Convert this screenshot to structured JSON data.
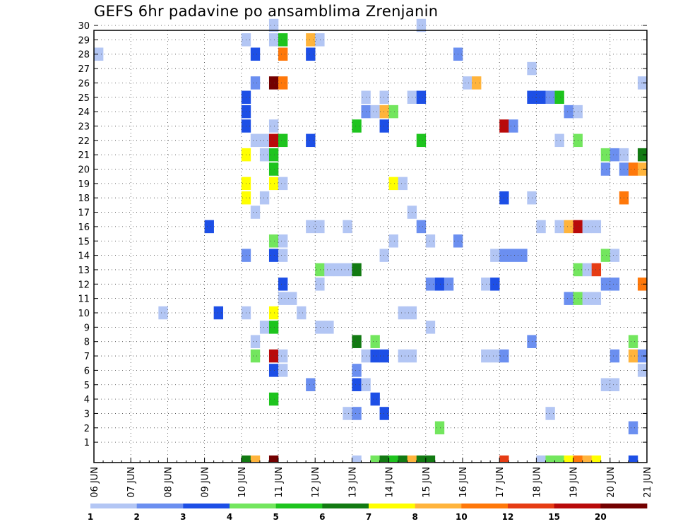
{
  "chart_data": {
    "type": "heatmap",
    "title": "GEFS 6hr padavine po ansamblima Zrenjanin",
    "x_tick_labels": [
      "06 JUN",
      "07 JUN",
      "08 JUN",
      "09 JUN",
      "10 JUN",
      "11 JUN",
      "12 JUN",
      "13 JUN",
      "14 JUN",
      "15 JUN",
      "16 JUN",
      "17 JUN",
      "18 JUN",
      "19 JUN",
      "20 JUN",
      "21 JUN"
    ],
    "y_tick_labels": [
      "1",
      "2",
      "3",
      "4",
      "5",
      "6",
      "7",
      "8",
      "9",
      "10",
      "11",
      "12",
      "13",
      "14",
      "15",
      "16",
      "17",
      "18",
      "19",
      "20",
      "21",
      "22",
      "23",
      "24",
      "25",
      "26",
      "27",
      "28",
      "29",
      "30"
    ],
    "x_unit": "day since 06 JUN 00Z (cell = 6 hr)",
    "xlim": [
      0,
      15
    ],
    "ylim": [
      0,
      30
    ],
    "grid": true,
    "colorbar_labels": [
      "1",
      "2",
      "3",
      "4",
      "5",
      "6",
      "7",
      "8",
      "10",
      "12",
      "15",
      "20"
    ],
    "colorbar_colors": [
      "#b3c6f4",
      "#6b8ff0",
      "#1d4fe6",
      "#73e65e",
      "#1ec41e",
      "#127a12",
      "#ffff00",
      "#ffb43c",
      "#ff780a",
      "#e63c14",
      "#b90a0a",
      "#730000"
    ],
    "cells": [
      {
        "m": 30,
        "x": 4.75,
        "c": 1
      },
      {
        "m": 30,
        "x": 8.75,
        "c": 1
      },
      {
        "m": 29,
        "x": 4.0,
        "c": 1
      },
      {
        "m": 29,
        "x": 4.75,
        "c": 1
      },
      {
        "m": 29,
        "x": 5.0,
        "c": 5
      },
      {
        "m": 29,
        "x": 5.75,
        "c": 8
      },
      {
        "m": 29,
        "x": 6.0,
        "c": 1
      },
      {
        "m": 28,
        "x": 0.0,
        "c": 1
      },
      {
        "m": 28,
        "x": 4.25,
        "c": 3
      },
      {
        "m": 28,
        "x": 5.0,
        "c": 9
      },
      {
        "m": 28,
        "x": 5.75,
        "c": 3
      },
      {
        "m": 28,
        "x": 9.75,
        "c": 2
      },
      {
        "m": 27,
        "x": 11.75,
        "c": 1
      },
      {
        "m": 26,
        "x": 4.25,
        "c": 2
      },
      {
        "m": 26,
        "x": 4.75,
        "c": 12
      },
      {
        "m": 26,
        "x": 5.0,
        "c": 9
      },
      {
        "m": 26,
        "x": 10.0,
        "c": 1
      },
      {
        "m": 26,
        "x": 10.25,
        "c": 8
      },
      {
        "m": 26,
        "x": 14.75,
        "c": 1
      },
      {
        "m": 25,
        "x": 4.0,
        "c": 3
      },
      {
        "m": 25,
        "x": 7.25,
        "c": 1
      },
      {
        "m": 25,
        "x": 7.75,
        "c": 1
      },
      {
        "m": 25,
        "x": 8.5,
        "c": 1
      },
      {
        "m": 25,
        "x": 8.75,
        "c": 3
      },
      {
        "m": 25,
        "x": 11.75,
        "c": 3
      },
      {
        "m": 25,
        "x": 12.0,
        "c": 3
      },
      {
        "m": 25,
        "x": 12.25,
        "c": 2
      },
      {
        "m": 25,
        "x": 12.5,
        "c": 5
      },
      {
        "m": 24,
        "x": 4.0,
        "c": 3
      },
      {
        "m": 24,
        "x": 7.25,
        "c": 2
      },
      {
        "m": 24,
        "x": 7.5,
        "c": 1
      },
      {
        "m": 24,
        "x": 7.75,
        "c": 8
      },
      {
        "m": 24,
        "x": 8.0,
        "c": 4
      },
      {
        "m": 24,
        "x": 12.75,
        "c": 2
      },
      {
        "m": 24,
        "x": 13.0,
        "c": 1
      },
      {
        "m": 23,
        "x": 4.0,
        "c": 3
      },
      {
        "m": 23,
        "x": 4.75,
        "c": 1
      },
      {
        "m": 23,
        "x": 7.0,
        "c": 5
      },
      {
        "m": 23,
        "x": 7.75,
        "c": 3
      },
      {
        "m": 23,
        "x": 11.0,
        "c": 11
      },
      {
        "m": 23,
        "x": 11.25,
        "c": 2
      },
      {
        "m": 22,
        "x": 4.25,
        "c": 1
      },
      {
        "m": 22,
        "x": 4.5,
        "c": 1
      },
      {
        "m": 22,
        "x": 4.75,
        "c": 11
      },
      {
        "m": 22,
        "x": 5.0,
        "c": 5
      },
      {
        "m": 22,
        "x": 5.75,
        "c": 3
      },
      {
        "m": 22,
        "x": 8.75,
        "c": 5
      },
      {
        "m": 22,
        "x": 12.5,
        "c": 1
      },
      {
        "m": 22,
        "x": 13.0,
        "c": 4
      },
      {
        "m": 21,
        "x": 4.0,
        "c": 7
      },
      {
        "m": 21,
        "x": 4.5,
        "c": 1
      },
      {
        "m": 21,
        "x": 4.75,
        "c": 5
      },
      {
        "m": 21,
        "x": 13.75,
        "c": 4
      },
      {
        "m": 21,
        "x": 14.0,
        "c": 2
      },
      {
        "m": 21,
        "x": 14.25,
        "c": 1
      },
      {
        "m": 21,
        "x": 14.75,
        "c": 6
      },
      {
        "m": 20,
        "x": 4.75,
        "c": 5
      },
      {
        "m": 20,
        "x": 13.75,
        "c": 2
      },
      {
        "m": 20,
        "x": 14.25,
        "c": 2
      },
      {
        "m": 20,
        "x": 14.5,
        "c": 9
      },
      {
        "m": 20,
        "x": 14.75,
        "c": 8
      },
      {
        "m": 19,
        "x": 4.0,
        "c": 7
      },
      {
        "m": 19,
        "x": 4.75,
        "c": 7
      },
      {
        "m": 19,
        "x": 5.0,
        "c": 1
      },
      {
        "m": 19,
        "x": 8.0,
        "c": 7
      },
      {
        "m": 19,
        "x": 8.25,
        "c": 1
      },
      {
        "m": 18,
        "x": 4.0,
        "c": 7
      },
      {
        "m": 18,
        "x": 4.5,
        "c": 1
      },
      {
        "m": 18,
        "x": 11.0,
        "c": 3
      },
      {
        "m": 18,
        "x": 11.75,
        "c": 1
      },
      {
        "m": 18,
        "x": 14.25,
        "c": 9
      },
      {
        "m": 17,
        "x": 4.25,
        "c": 1
      },
      {
        "m": 17,
        "x": 8.5,
        "c": 1
      },
      {
        "m": 16,
        "x": 3.0,
        "c": 3
      },
      {
        "m": 16,
        "x": 5.75,
        "c": 1
      },
      {
        "m": 16,
        "x": 6.0,
        "c": 1
      },
      {
        "m": 16,
        "x": 6.75,
        "c": 1
      },
      {
        "m": 16,
        "x": 8.75,
        "c": 2
      },
      {
        "m": 16,
        "x": 12.0,
        "c": 1
      },
      {
        "m": 16,
        "x": 12.5,
        "c": 1
      },
      {
        "m": 16,
        "x": 12.75,
        "c": 8
      },
      {
        "m": 16,
        "x": 13.0,
        "c": 11
      },
      {
        "m": 16,
        "x": 13.25,
        "c": 1
      },
      {
        "m": 16,
        "x": 13.5,
        "c": 1
      },
      {
        "m": 15,
        "x": 4.75,
        "c": 4
      },
      {
        "m": 15,
        "x": 5.0,
        "c": 1
      },
      {
        "m": 15,
        "x": 8.0,
        "c": 1
      },
      {
        "m": 15,
        "x": 9.0,
        "c": 1
      },
      {
        "m": 15,
        "x": 9.75,
        "c": 2
      },
      {
        "m": 14,
        "x": 4.0,
        "c": 2
      },
      {
        "m": 14,
        "x": 4.75,
        "c": 3
      },
      {
        "m": 14,
        "x": 5.0,
        "c": 1
      },
      {
        "m": 14,
        "x": 7.75,
        "c": 1
      },
      {
        "m": 14,
        "x": 10.75,
        "c": 1
      },
      {
        "m": 14,
        "x": 11.0,
        "c": 2
      },
      {
        "m": 14,
        "x": 11.25,
        "c": 2
      },
      {
        "m": 14,
        "x": 11.5,
        "c": 2
      },
      {
        "m": 14,
        "x": 13.75,
        "c": 4
      },
      {
        "m": 14,
        "x": 14.0,
        "c": 1
      },
      {
        "m": 13,
        "x": 6.0,
        "c": 4
      },
      {
        "m": 13,
        "x": 6.25,
        "c": 1
      },
      {
        "m": 13,
        "x": 6.5,
        "c": 1
      },
      {
        "m": 13,
        "x": 6.75,
        "c": 1
      },
      {
        "m": 13,
        "x": 7.0,
        "c": 6
      },
      {
        "m": 13,
        "x": 13.0,
        "c": 4
      },
      {
        "m": 13,
        "x": 13.25,
        "c": 1
      },
      {
        "m": 13,
        "x": 13.5,
        "c": 10
      },
      {
        "m": 12,
        "x": 5.0,
        "c": 3
      },
      {
        "m": 12,
        "x": 6.0,
        "c": 1
      },
      {
        "m": 12,
        "x": 9.0,
        "c": 2
      },
      {
        "m": 12,
        "x": 9.25,
        "c": 3
      },
      {
        "m": 12,
        "x": 9.5,
        "c": 2
      },
      {
        "m": 12,
        "x": 10.5,
        "c": 1
      },
      {
        "m": 12,
        "x": 10.75,
        "c": 3
      },
      {
        "m": 12,
        "x": 13.75,
        "c": 2
      },
      {
        "m": 12,
        "x": 14.0,
        "c": 2
      },
      {
        "m": 12,
        "x": 14.75,
        "c": 9
      },
      {
        "m": 11,
        "x": 5.0,
        "c": 1
      },
      {
        "m": 11,
        "x": 5.25,
        "c": 1
      },
      {
        "m": 11,
        "x": 12.75,
        "c": 2
      },
      {
        "m": 11,
        "x": 13.0,
        "c": 4
      },
      {
        "m": 11,
        "x": 13.25,
        "c": 1
      },
      {
        "m": 11,
        "x": 13.5,
        "c": 1
      },
      {
        "m": 10,
        "x": 1.75,
        "c": 1
      },
      {
        "m": 10,
        "x": 3.25,
        "c": 3
      },
      {
        "m": 10,
        "x": 4.0,
        "c": 1
      },
      {
        "m": 10,
        "x": 4.75,
        "c": 7
      },
      {
        "m": 10,
        "x": 5.5,
        "c": 1
      },
      {
        "m": 10,
        "x": 8.25,
        "c": 1
      },
      {
        "m": 10,
        "x": 8.5,
        "c": 1
      },
      {
        "m": 9,
        "x": 4.5,
        "c": 1
      },
      {
        "m": 9,
        "x": 4.75,
        "c": 5
      },
      {
        "m": 9,
        "x": 6.0,
        "c": 1
      },
      {
        "m": 9,
        "x": 6.25,
        "c": 1
      },
      {
        "m": 9,
        "x": 9.0,
        "c": 1
      },
      {
        "m": 8,
        "x": 4.25,
        "c": 1
      },
      {
        "m": 8,
        "x": 7.0,
        "c": 6
      },
      {
        "m": 8,
        "x": 7.5,
        "c": 4
      },
      {
        "m": 8,
        "x": 11.75,
        "c": 2
      },
      {
        "m": 8,
        "x": 14.5,
        "c": 4
      },
      {
        "m": 7,
        "x": 4.25,
        "c": 4
      },
      {
        "m": 7,
        "x": 4.75,
        "c": 11
      },
      {
        "m": 7,
        "x": 5.0,
        "c": 1
      },
      {
        "m": 7,
        "x": 7.25,
        "c": 1
      },
      {
        "m": 7,
        "x": 7.5,
        "c": 3
      },
      {
        "m": 7,
        "x": 7.75,
        "c": 3
      },
      {
        "m": 7,
        "x": 8.25,
        "c": 1
      },
      {
        "m": 7,
        "x": 8.5,
        "c": 1
      },
      {
        "m": 7,
        "x": 10.5,
        "c": 1
      },
      {
        "m": 7,
        "x": 10.75,
        "c": 1
      },
      {
        "m": 7,
        "x": 11.0,
        "c": 2
      },
      {
        "m": 7,
        "x": 14.0,
        "c": 2
      },
      {
        "m": 7,
        "x": 14.5,
        "c": 8
      },
      {
        "m": 7,
        "x": 14.75,
        "c": 2
      },
      {
        "m": 6,
        "x": 4.75,
        "c": 3
      },
      {
        "m": 6,
        "x": 5.0,
        "c": 1
      },
      {
        "m": 6,
        "x": 7.0,
        "c": 2
      },
      {
        "m": 6,
        "x": 14.75,
        "c": 1
      },
      {
        "m": 5,
        "x": 5.75,
        "c": 2
      },
      {
        "m": 5,
        "x": 7.0,
        "c": 3
      },
      {
        "m": 5,
        "x": 7.25,
        "c": 1
      },
      {
        "m": 5,
        "x": 13.75,
        "c": 1
      },
      {
        "m": 5,
        "x": 14.0,
        "c": 1
      },
      {
        "m": 4,
        "x": 4.75,
        "c": 5
      },
      {
        "m": 4,
        "x": 7.5,
        "c": 3
      },
      {
        "m": 3,
        "x": 6.75,
        "c": 1
      },
      {
        "m": 3,
        "x": 7.0,
        "c": 2
      },
      {
        "m": 3,
        "x": 7.75,
        "c": 3
      },
      {
        "m": 3,
        "x": 12.25,
        "c": 1
      },
      {
        "m": 2,
        "x": 9.25,
        "c": 4
      },
      {
        "m": 2,
        "x": 14.5,
        "c": 2
      },
      {
        "m": 0,
        "x": 4.0,
        "c": 6
      },
      {
        "m": 0,
        "x": 4.25,
        "c": 8
      },
      {
        "m": 0,
        "x": 4.75,
        "c": 12
      },
      {
        "m": 0,
        "x": 7.0,
        "c": 1
      },
      {
        "m": 0,
        "x": 7.5,
        "c": 4
      },
      {
        "m": 0,
        "x": 7.75,
        "c": 6
      },
      {
        "m": 0,
        "x": 8.0,
        "c": 5
      },
      {
        "m": 0,
        "x": 8.25,
        "c": 6
      },
      {
        "m": 0,
        "x": 8.5,
        "c": 8
      },
      {
        "m": 0,
        "x": 8.75,
        "c": 6
      },
      {
        "m": 0,
        "x": 9.0,
        "c": 6
      },
      {
        "m": 0,
        "x": 11.0,
        "c": 10
      },
      {
        "m": 0,
        "x": 12.0,
        "c": 1
      },
      {
        "m": 0,
        "x": 12.25,
        "c": 4
      },
      {
        "m": 0,
        "x": 12.5,
        "c": 4
      },
      {
        "m": 0,
        "x": 12.75,
        "c": 7
      },
      {
        "m": 0,
        "x": 13.0,
        "c": 9
      },
      {
        "m": 0,
        "x": 13.25,
        "c": 8
      },
      {
        "m": 0,
        "x": 13.5,
        "c": 7
      },
      {
        "m": 0,
        "x": 14.5,
        "c": 3
      }
    ]
  }
}
